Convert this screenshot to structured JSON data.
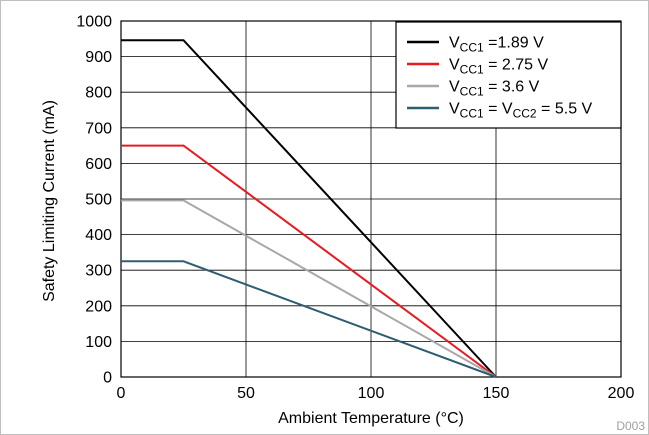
{
  "chart_data": {
    "type": "line",
    "title": "",
    "xlabel": "Ambient Temperature (°C)",
    "ylabel": "Safety Limiting Current (mA)",
    "xlim": [
      0,
      200
    ],
    "ylim": [
      0,
      1000
    ],
    "xticks": [
      "0",
      "50",
      "100",
      "150",
      "200"
    ],
    "yticks": [
      "0",
      "100",
      "200",
      "300",
      "400",
      "500",
      "600",
      "700",
      "800",
      "900",
      "1000"
    ],
    "grid": true,
    "legend_position": "top-right",
    "figure_id": "D003",
    "series": [
      {
        "color": "#000000",
        "legend": [
          {
            "t": "V"
          },
          {
            "t": "CC1",
            "sub": true
          },
          {
            "t": " =1.89 V"
          }
        ],
        "x": [
          0,
          25,
          150
        ],
        "y": [
          946,
          946,
          0
        ]
      },
      {
        "color": "#e8191f",
        "legend": [
          {
            "t": "V"
          },
          {
            "t": "CC1",
            "sub": true
          },
          {
            "t": " = 2.75 V"
          }
        ],
        "x": [
          0,
          25,
          150
        ],
        "y": [
          650,
          650,
          0
        ]
      },
      {
        "color": "#a8a8a8",
        "legend": [
          {
            "t": "V"
          },
          {
            "t": "CC1",
            "sub": true
          },
          {
            "t": " = 3.6 V"
          }
        ],
        "x": [
          0,
          25,
          150
        ],
        "y": [
          496,
          496,
          0
        ]
      },
      {
        "color": "#2e5e72",
        "legend": [
          {
            "t": "V"
          },
          {
            "t": "CC1",
            "sub": true
          },
          {
            "t": " = V"
          },
          {
            "t": "CC2",
            "sub": true
          },
          {
            "t": " = 5.5 V"
          }
        ],
        "x": [
          0,
          25,
          150
        ],
        "y": [
          325,
          325,
          0
        ]
      }
    ]
  }
}
